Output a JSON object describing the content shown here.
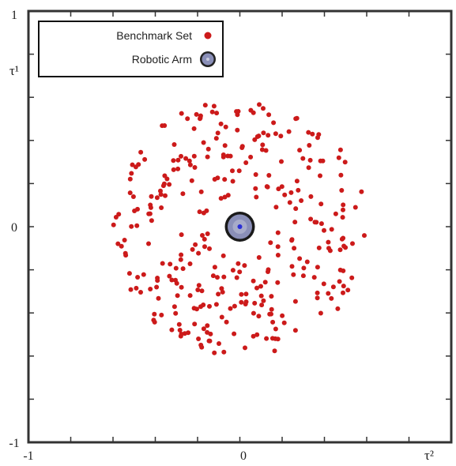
{
  "chart_data": {
    "type": "scatter",
    "xlabel": "τ²",
    "ylabel": "τ¹",
    "xlim": [
      -1,
      1
    ],
    "ylim": [
      -1,
      1
    ],
    "x_tick_labels": [
      "-1",
      "0"
    ],
    "y_tick_labels": [
      "1",
      "0",
      "-1"
    ],
    "grid": false,
    "legend_position": "top-left",
    "legend": [
      {
        "label": "Benchmark Set",
        "color": "#cc1a1a",
        "marker": "dot"
      },
      {
        "label": "Robotic Arm",
        "color": "#8a8fb8",
        "marker": "ring"
      }
    ],
    "series": [
      {
        "name": "Robotic Arm",
        "color": "#8a8fb8",
        "points": [
          {
            "x": 0.0,
            "y": 0.0
          }
        ]
      },
      {
        "name": "Benchmark Set",
        "color": "#cc1a1a",
        "generation": {
          "count": 330,
          "r_min": 0.15,
          "r_max": 0.6
        }
      }
    ]
  }
}
